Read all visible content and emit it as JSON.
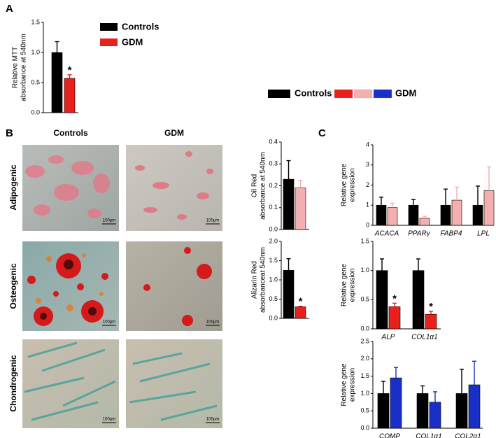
{
  "panels": {
    "a": "A",
    "b": "B",
    "c": "C"
  },
  "legend": {
    "series": [
      {
        "name": "Controls",
        "colors": [
          "#000000"
        ]
      },
      {
        "name": "GDM",
        "colors": [
          "#e8211d",
          "#f4b0b0",
          "#1a2fc8"
        ]
      }
    ]
  },
  "columns": [
    "Controls",
    "GDM"
  ],
  "rows": [
    "Adipogenic",
    "Osteogenic",
    "Chondrogenic"
  ],
  "scale_bar": "100μm",
  "chart_data": [
    {
      "type": "bar",
      "ylabel": [
        "Relative MTT",
        "absorbance at 540nm"
      ],
      "categories": [
        null
      ],
      "series": [
        {
          "name": "Controls",
          "color": "#000000",
          "values": [
            1.0
          ],
          "errors": [
            0.18
          ]
        },
        {
          "name": "GDM",
          "color": "#e8211d",
          "values": [
            0.57
          ],
          "errors": [
            0.06
          ],
          "annotations": [
            "*"
          ]
        }
      ],
      "ylim": [
        0,
        1.5
      ],
      "yticks": [
        {
          "value": 0,
          "label": "0.0"
        },
        0.5,
        {
          "value": 1,
          "label": "1.0"
        },
        1.5
      ],
      "legend": true
    },
    {
      "type": "bar",
      "ylabel": [
        "Oil Red",
        "absorbance at 540nm"
      ],
      "categories": [
        null
      ],
      "series": [
        {
          "color": "#000000",
          "values": [
            0.23
          ],
          "errors": [
            0.085
          ]
        },
        {
          "color": "#f4b0b0",
          "values": [
            0.19
          ],
          "errors": [
            0.035
          ]
        }
      ],
      "ylim": [
        0,
        0.4
      ],
      "yticks": [
        {
          "value": 0,
          "label": "0.0"
        },
        0.1,
        0.2,
        0.3,
        0.4
      ]
    },
    {
      "type": "bar",
      "ylabel": [
        "Alizarin Red",
        "absorbanceat 540nm"
      ],
      "categories": [
        null
      ],
      "series": [
        {
          "color": "#000000",
          "values": [
            1.25
          ],
          "errors": [
            0.3
          ]
        },
        {
          "color": "#e8211d",
          "values": [
            0.3
          ],
          "errors": [
            0.015
          ],
          "annotations": [
            "*"
          ]
        }
      ],
      "ylim": [
        0,
        2
      ],
      "yticks": [
        {
          "value": 0,
          "label": "0.0"
        },
        0.5,
        {
          "value": 1,
          "label": "1.0"
        },
        1.5,
        {
          "value": 2,
          "label": "2.0"
        }
      ]
    },
    {
      "type": "bar",
      "ylabel": [
        "Relative gene",
        "expression"
      ],
      "categories": [
        "ACACA",
        "PPARγ",
        "FABP4",
        "LPL"
      ],
      "series": [
        {
          "color": "#000000",
          "values": [
            1.0,
            1.0,
            1.0,
            1.0
          ],
          "errors": [
            0.4,
            0.28,
            0.8,
            0.95
          ]
        },
        {
          "color": "#f4b0b0",
          "values": [
            0.88,
            0.35,
            1.25,
            1.72
          ],
          "errors": [
            0.22,
            0.1,
            0.65,
            1.18
          ]
        }
      ],
      "ylim": [
        0,
        4
      ],
      "yticks": [
        0,
        1,
        2,
        3,
        4
      ]
    },
    {
      "type": "bar",
      "ylabel": [
        "Relative gene",
        "expression"
      ],
      "categories": [
        "ALP",
        "COL1α1"
      ],
      "series": [
        {
          "color": "#000000",
          "values": [
            1.0,
            1.0
          ],
          "errors": [
            0.2,
            0.2
          ]
        },
        {
          "color": "#e8211d",
          "values": [
            0.38,
            0.25
          ],
          "errors": [
            0.06,
            0.05
          ],
          "annotations": [
            "*",
            "*"
          ]
        }
      ],
      "ylim": [
        0,
        1.5
      ],
      "yticks": [
        {
          "value": 0,
          "label": "0.0"
        },
        0.5,
        {
          "value": 1,
          "label": "1.0"
        },
        1.5
      ]
    },
    {
      "type": "bar",
      "ylabel": [
        "Relative gene",
        "expression"
      ],
      "categories": [
        "COMP",
        "COL1α1",
        "COL2α1"
      ],
      "series": [
        {
          "color": "#000000",
          "values": [
            1.0,
            1.0,
            1.0
          ],
          "errors": [
            0.35,
            0.22,
            0.7
          ]
        },
        {
          "color": "#1a2fc8",
          "values": [
            1.45,
            0.75,
            1.25
          ],
          "errors": [
            0.3,
            0.3,
            0.68
          ]
        }
      ],
      "ylim": [
        0,
        2.5
      ],
      "yticks": [
        {
          "value": 0,
          "label": "0.0"
        },
        0.5,
        {
          "value": 1,
          "label": "1.0"
        },
        1.5,
        {
          "value": 2,
          "label": "2.0"
        },
        2.5
      ]
    }
  ]
}
